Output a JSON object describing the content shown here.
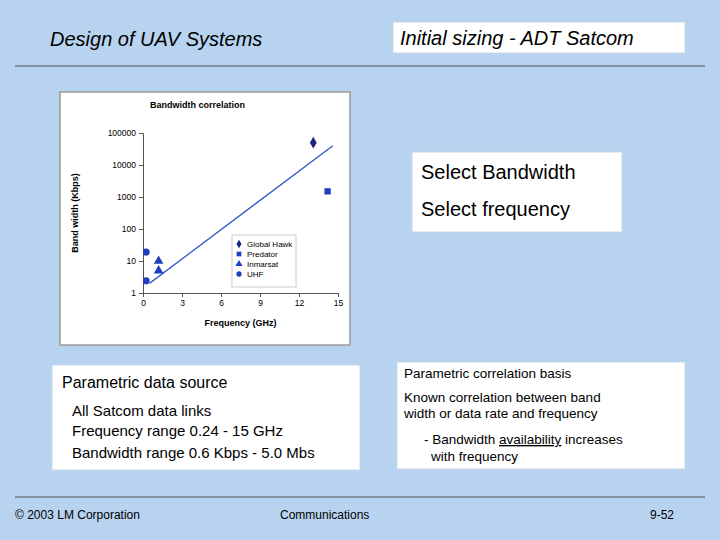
{
  "chart_data": {
    "type": "scatter",
    "title": "Bandwidth correlation",
    "x_label": "Frequency (GHz)",
    "y_label": "Band width (Kbps)",
    "xlim": [
      0,
      15
    ],
    "xticks": [
      0,
      3,
      6,
      9,
      12,
      15
    ],
    "ylim": [
      1,
      100000
    ],
    "yticks": [
      1,
      10,
      100,
      1000,
      10000,
      100000
    ],
    "log": "y",
    "grid": false,
    "legend": "lower right",
    "series": [
      {
        "name": "Global Hawk",
        "color": "#1a237e",
        "marker": "diamond",
        "x": [
          13.1
        ],
        "values": [
          50000
        ]
      },
      {
        "name": "Predator",
        "color": "#1f3fbf",
        "marker": "square",
        "x": [
          14.2
        ],
        "values": [
          1500
        ]
      },
      {
        "name": "Inmarsat",
        "color": "#1f3fbf",
        "marker": "triangle",
        "x": [
          1.2,
          1.2
        ],
        "values": [
          10,
          5
        ]
      },
      {
        "name": "UHF",
        "color": "#1f3fbf",
        "marker": "circle",
        "x": [
          0.24,
          0.24
        ],
        "values": [
          19,
          2.4
        ]
      }
    ],
    "trend": {
      "x": [
        0.5,
        14.6
      ],
      "values": [
        2,
        40000
      ],
      "color": "#3355cc",
      "line_style": "solid"
    }
  },
  "slide": {
    "header_left": "Design of UAV Systems",
    "header_right": "Initial sizing - ADT Satcom",
    "steps": [
      "Select Bandwidth",
      "Select frequency"
    ],
    "source": {
      "title": "Parametric data source",
      "lines": [
        "All Satcom data links",
        "Frequency range 0.24 - 15 GHz",
        "Bandwidth range 0.6 Kbps - 5.0 Mbs"
      ]
    },
    "basis": {
      "title": "Parametric correlation basis",
      "lines": [
        "Known correlation between band",
        "width or data rate and frequency"
      ],
      "bullet": {
        "before": "- Bandwidth ",
        "underlined": "availability",
        "after": " increases",
        "next": "with frequency"
      }
    },
    "footer": {
      "copyright": "© 2003 LM Corporation",
      "section": "Communications",
      "page": "9-52"
    }
  }
}
